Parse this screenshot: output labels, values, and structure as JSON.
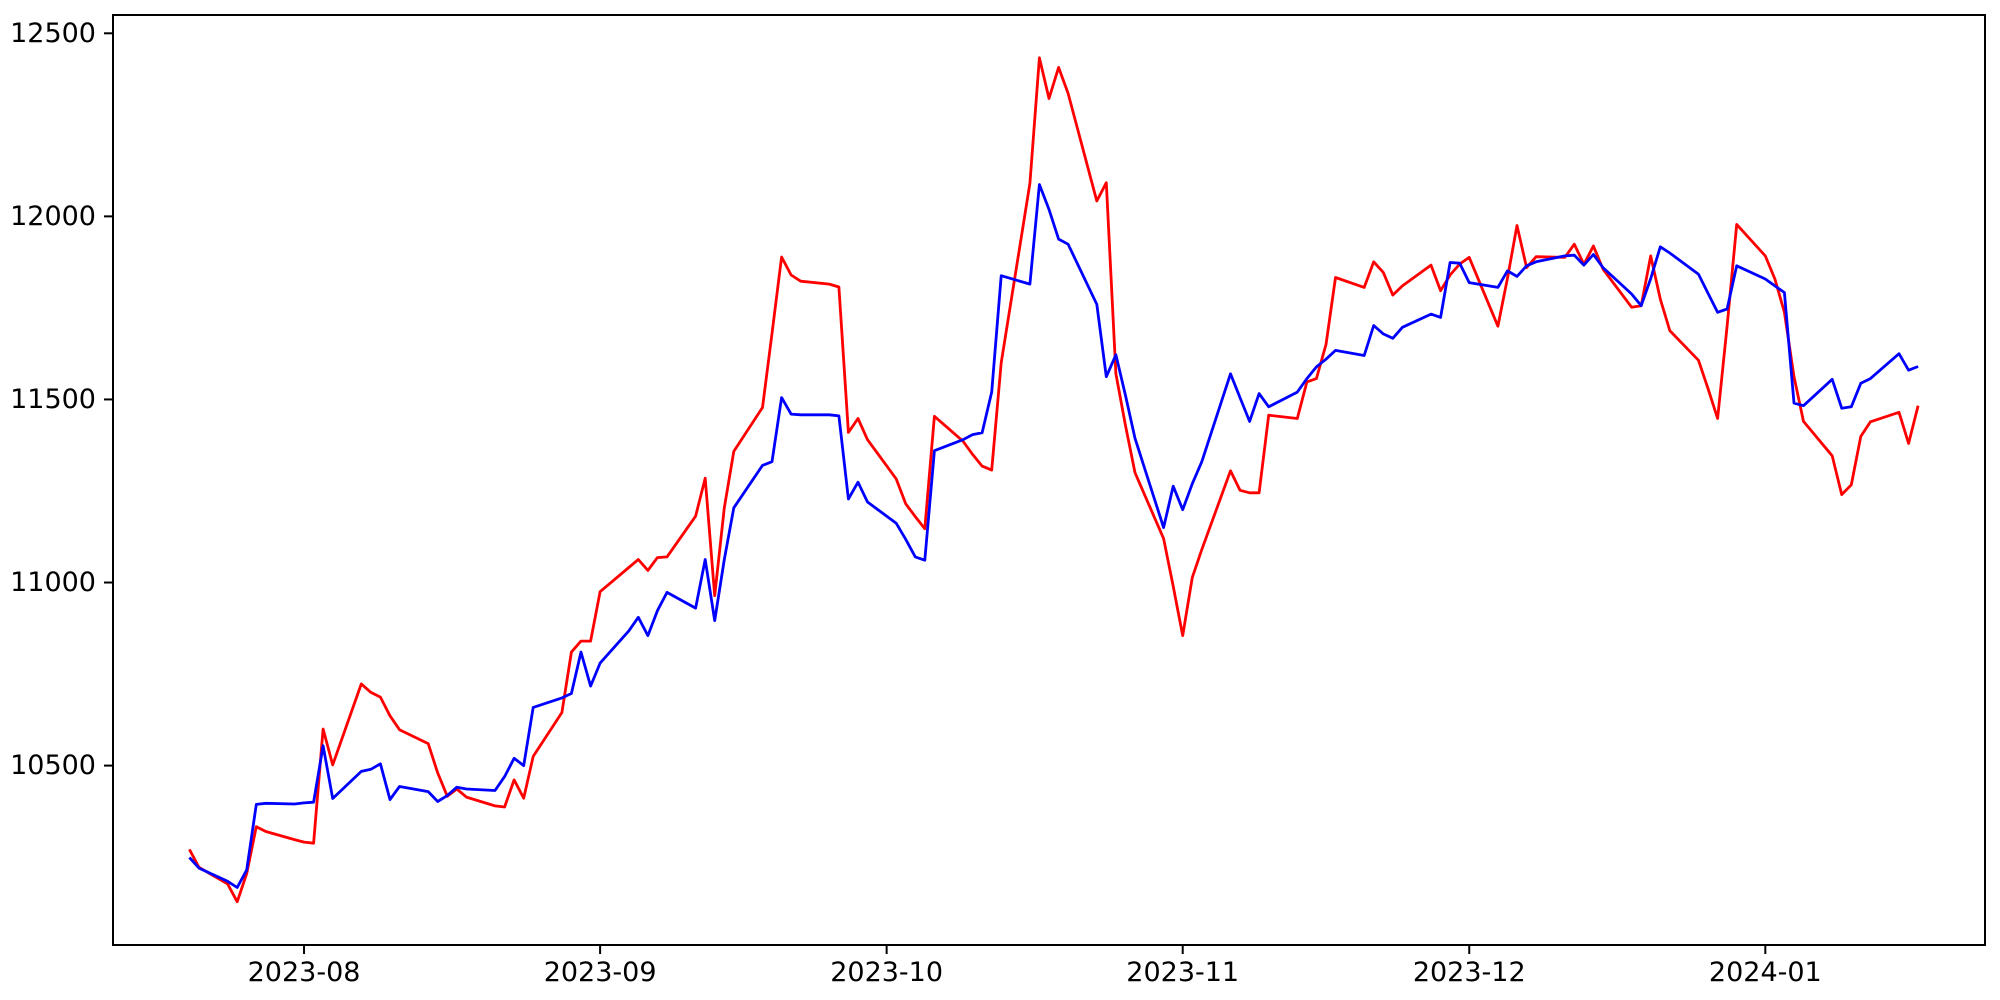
{
  "figure": {
    "background_color": "#ffffff",
    "title": "",
    "legend": null
  },
  "chart_data": {
    "type": "line",
    "grid": false,
    "legend_position": "none",
    "title": "",
    "xlabel": "",
    "ylabel": "",
    "xlim": [
      "2023-07-12",
      "2024-01-24"
    ],
    "ylim": [
      10010,
      12550
    ],
    "y_ticks": [
      {
        "value": 10500,
        "label": "10500"
      },
      {
        "value": 11000,
        "label": "11000"
      },
      {
        "value": 11500,
        "label": "11500"
      },
      {
        "value": 12000,
        "label": "12000"
      },
      {
        "value": 12500,
        "label": "12500"
      }
    ],
    "x_ticks": [
      {
        "date": "2023-08-01",
        "label": "2023-08"
      },
      {
        "date": "2023-09-01",
        "label": "2023-09"
      },
      {
        "date": "2023-10-01",
        "label": "2023-10"
      },
      {
        "date": "2023-11-01",
        "label": "2023-11"
      },
      {
        "date": "2023-12-01",
        "label": "2023-12"
      },
      {
        "date": "2024-01-01",
        "label": "2024-01"
      }
    ],
    "x": [
      "2023-07-20",
      "2023-07-21",
      "2023-07-24",
      "2023-07-25",
      "2023-07-26",
      "2023-07-27",
      "2023-07-28",
      "2023-07-31",
      "2023-08-01",
      "2023-08-02",
      "2023-08-03",
      "2023-08-04",
      "2023-08-07",
      "2023-08-08",
      "2023-08-09",
      "2023-08-10",
      "2023-08-11",
      "2023-08-14",
      "2023-08-15",
      "2023-08-16",
      "2023-08-17",
      "2023-08-18",
      "2023-08-21",
      "2023-08-22",
      "2023-08-23",
      "2023-08-24",
      "2023-08-25",
      "2023-08-28",
      "2023-08-29",
      "2023-08-30",
      "2023-08-31",
      "2023-09-01",
      "2023-09-04",
      "2023-09-05",
      "2023-09-06",
      "2023-09-07",
      "2023-09-08",
      "2023-09-11",
      "2023-09-12",
      "2023-09-13",
      "2023-09-14",
      "2023-09-15",
      "2023-09-18",
      "2023-09-19",
      "2023-09-20",
      "2023-09-21",
      "2023-09-22",
      "2023-09-25",
      "2023-09-26",
      "2023-09-27",
      "2023-09-28",
      "2023-09-29",
      "2023-10-02",
      "2023-10-03",
      "2023-10-04",
      "2023-10-05",
      "2023-10-06",
      "2023-10-09",
      "2023-10-10",
      "2023-10-11",
      "2023-10-12",
      "2023-10-13",
      "2023-10-16",
      "2023-10-17",
      "2023-10-18",
      "2023-10-19",
      "2023-10-20",
      "2023-10-23",
      "2023-10-24",
      "2023-10-25",
      "2023-10-26",
      "2023-10-27",
      "2023-10-30",
      "2023-10-31",
      "2023-11-01",
      "2023-11-02",
      "2023-11-03",
      "2023-11-06",
      "2023-11-07",
      "2023-11-08",
      "2023-11-09",
      "2023-11-10",
      "2023-11-13",
      "2023-11-14",
      "2023-11-15",
      "2023-11-16",
      "2023-11-17",
      "2023-11-20",
      "2023-11-21",
      "2023-11-22",
      "2023-11-23",
      "2023-11-24",
      "2023-11-27",
      "2023-11-28",
      "2023-11-29",
      "2023-11-30",
      "2023-12-01",
      "2023-12-04",
      "2023-12-05",
      "2023-12-06",
      "2023-12-07",
      "2023-12-08",
      "2023-12-11",
      "2023-12-12",
      "2023-12-13",
      "2023-12-14",
      "2023-12-15",
      "2023-12-18",
      "2023-12-19",
      "2023-12-20",
      "2023-12-21",
      "2023-12-22",
      "2023-12-25",
      "2023-12-26",
      "2023-12-27",
      "2023-12-28",
      "2023-12-29",
      "2024-01-01",
      "2024-01-02",
      "2024-01-03",
      "2024-01-04",
      "2024-01-05",
      "2024-01-08",
      "2024-01-09",
      "2024-01-10",
      "2024-01-11",
      "2024-01-12",
      "2024-01-15",
      "2024-01-16",
      "2024-01-17"
    ],
    "series": [
      {
        "name": "red-series",
        "color": "#ff0000",
        "line_width": 2.8,
        "values": [
          10271,
          10222,
          10177,
          10128,
          10205,
          10333,
          10320,
          10298,
          10291,
          10288,
          10600,
          10502,
          10723,
          10700,
          10687,
          10636,
          10598,
          10560,
          10480,
          10416,
          10436,
          10414,
          10390,
          10387,
          10461,
          10411,
          10525,
          10645,
          10810,
          10840,
          10840,
          10975,
          11041,
          11063,
          11033,
          11068,
          11070,
          11181,
          11285,
          10964,
          11204,
          11358,
          11478,
          11680,
          11889,
          11840,
          11823,
          11815,
          11807,
          11410,
          11448,
          11390,
          11283,
          11215,
          11180,
          11147,
          11454,
          11386,
          11350,
          11318,
          11307,
          11600,
          12090,
          12433,
          12322,
          12407,
          12336,
          12042,
          12092,
          11570,
          11430,
          11300,
          11120,
          10990,
          10855,
          11014,
          11090,
          11305,
          11252,
          11245,
          11245,
          11457,
          11448,
          11548,
          11557,
          11650,
          11833,
          11806,
          11876,
          11847,
          11785,
          11810,
          11867,
          11797,
          11840,
          11870,
          11888,
          11700,
          11830,
          11975,
          11860,
          11890,
          11888,
          11924,
          11869,
          11919,
          11856,
          11752,
          11756,
          11892,
          11774,
          11688,
          11607,
          11530,
          11448,
          11700,
          11978,
          11892,
          11829,
          11738,
          11562,
          11440,
          11346,
          11240,
          11267,
          11399,
          11439,
          11465,
          11380,
          11483
        ]
      },
      {
        "name": "blue-series",
        "color": "#0000ff",
        "line_width": 2.8,
        "values": [
          10249,
          10220,
          10184,
          10167,
          10215,
          10394,
          10397,
          10395,
          10398,
          10400,
          10554,
          10410,
          10484,
          10490,
          10505,
          10407,
          10443,
          10429,
          10402,
          10418,
          10441,
          10436,
          10432,
          10470,
          10520,
          10500,
          10659,
          10685,
          10697,
          10810,
          10717,
          10780,
          10868,
          10905,
          10855,
          10923,
          10973,
          10930,
          11063,
          10896,
          11063,
          11204,
          11320,
          11330,
          11505,
          11460,
          11458,
          11458,
          11455,
          11228,
          11274,
          11220,
          11162,
          11118,
          11070,
          11061,
          11360,
          11390,
          11404,
          11409,
          11520,
          11838,
          11815,
          12087,
          12019,
          11938,
          11924,
          11760,
          11562,
          11622,
          11512,
          11394,
          11150,
          11263,
          11199,
          11270,
          11330,
          11570,
          11505,
          11440,
          11516,
          11480,
          11520,
          11557,
          11589,
          11610,
          11634,
          11620,
          11702,
          11679,
          11667,
          11697,
          11733,
          11724,
          11874,
          11872,
          11819,
          11806,
          11851,
          11836,
          11865,
          11876,
          11892,
          11894,
          11867,
          11896,
          11860,
          11788,
          11756,
          11830,
          11917,
          11900,
          11842,
          11790,
          11738,
          11747,
          11865,
          11829,
          11810,
          11792,
          11490,
          11483,
          11555,
          11476,
          11480,
          11544,
          11557,
          11625,
          11580,
          11590
        ]
      }
    ]
  }
}
